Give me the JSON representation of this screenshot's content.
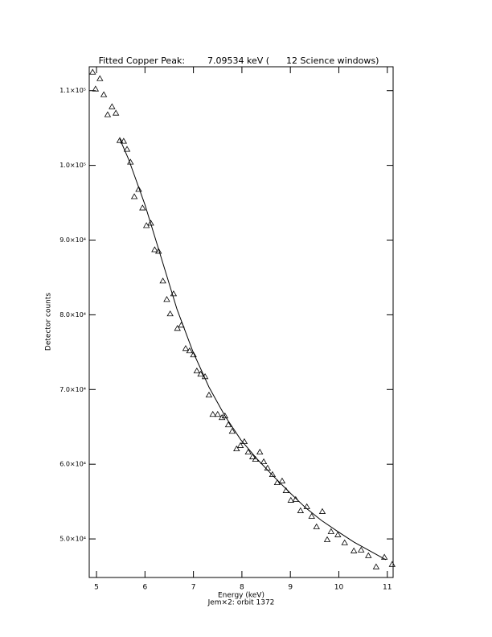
{
  "chart_data": {
    "type": "scatter",
    "title": "Fitted Copper Peak:        7.09534 keV (      12 Science windows)",
    "xlabel": "Energy (keV)",
    "ylabel": "Detector counts",
    "subtitle": "Jem×2: orbit 1372",
    "xlim": [
      4.85,
      11.12
    ],
    "ylim": [
      44840,
      113200
    ],
    "xticks": [
      5,
      6,
      7,
      8,
      9,
      10,
      11
    ],
    "yticks": [
      {
        "value": 50000,
        "label": "5.0×10⁴"
      },
      {
        "value": 60000,
        "label": "6.0×10⁴"
      },
      {
        "value": 70000,
        "label": "7.0×10⁴"
      },
      {
        "value": 80000,
        "label": "8.0×10⁴"
      },
      {
        "value": 90000,
        "label": "9.0×10⁴"
      },
      {
        "value": 100000,
        "label": "1.0×10⁵"
      },
      {
        "value": 110000,
        "label": "1.1×10⁵"
      }
    ],
    "color": "#000000",
    "series": [
      {
        "marker": "triangle",
        "x": [
          4.92,
          4.98,
          5.07,
          5.15,
          5.23,
          5.32,
          5.4,
          5.48,
          5.56,
          5.63,
          5.7,
          5.78,
          5.87,
          5.95,
          6.03,
          6.12,
          6.2,
          6.28,
          6.37,
          6.45,
          6.52,
          6.59,
          6.67,
          6.75,
          6.84,
          6.92,
          7.0,
          7.07,
          7.15,
          7.24,
          7.32,
          7.4,
          7.5,
          7.59,
          7.65,
          7.72,
          7.8,
          7.89,
          7.97,
          8.05,
          8.13,
          8.22,
          8.28,
          8.37,
          8.45,
          8.53,
          8.63,
          8.73,
          8.83,
          8.91,
          9.01,
          9.11,
          9.21,
          9.34,
          9.44,
          9.54,
          9.66,
          9.76,
          9.84,
          9.98,
          10.12,
          10.31,
          10.46,
          10.61,
          10.77,
          10.94,
          11.1
        ],
        "values": [
          112470,
          110220,
          111610,
          109460,
          106780,
          107850,
          106990,
          103330,
          103230,
          102150,
          100430,
          95810,
          96780,
          94300,
          91940,
          92260,
          88710,
          88500,
          84520,
          82050,
          80120,
          82800,
          78180,
          78610,
          75490,
          75170,
          74630,
          72480,
          72050,
          71720,
          69250,
          66670,
          66670,
          66240,
          66460,
          65270,
          64410,
          62050,
          62490,
          63020,
          61620,
          60980,
          60650,
          61620,
          60330,
          59470,
          58610,
          57530,
          57750,
          56460,
          55170,
          55280,
          53770,
          54310,
          53020,
          51620,
          53660,
          49900,
          50980,
          50550,
          49480,
          48400,
          48510,
          47760,
          46260,
          47550,
          46580
        ]
      },
      {
        "style": "line",
        "x": [
          5.48,
          5.66,
          6.0,
          6.33,
          6.66,
          6.99,
          7.32,
          7.65,
          7.98,
          8.32,
          8.65,
          8.98,
          9.31,
          9.64,
          9.98,
          10.31,
          10.64,
          10.97
        ],
        "values": [
          103550,
          100860,
          94730,
          87750,
          80760,
          75060,
          70330,
          66460,
          63240,
          60650,
          58400,
          56250,
          54200,
          52480,
          50980,
          49580,
          48400,
          47220
        ]
      }
    ]
  }
}
